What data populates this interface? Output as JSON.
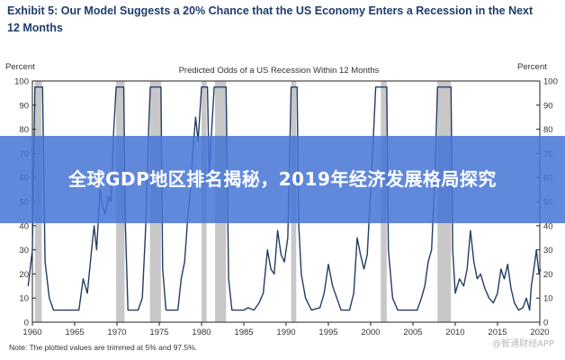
{
  "header": {
    "title": "Exhibit 5: Our Model Suggests a 20% Chance that the US Economy Enters a Recession in the Next 12 Months"
  },
  "overlay": {
    "text": "全球GDP地区排名揭秘，2019年经济发展格局探究",
    "background": "#4676d6"
  },
  "footnote": "Note: The plotted values are trimmed at 5% and 97.5%.",
  "watermark": "@智通财经APP",
  "colors": {
    "line": "#233d62",
    "recession_shade": "#c8c8c8",
    "title": "#1f3c6e"
  },
  "chart_data": {
    "type": "line",
    "title": "Predicted Odds of a US Recession  Within 12 Months",
    "ylabel_left": "Percent",
    "ylabel_right": "Percent",
    "xlim": [
      1960,
      2020
    ],
    "ylim": [
      0,
      100
    ],
    "x_ticks": [
      1960,
      1965,
      1970,
      1975,
      1980,
      1985,
      1990,
      1995,
      2000,
      2005,
      2010,
      2015,
      2020
    ],
    "y_ticks": [
      0,
      10,
      20,
      30,
      40,
      50,
      60,
      70,
      80,
      90,
      100
    ],
    "grid": false,
    "recessions": [
      [
        1960.3,
        1961.1
      ],
      [
        1969.9,
        1970.9
      ],
      [
        1973.9,
        1975.2
      ],
      [
        1980.0,
        1980.6
      ],
      [
        1981.6,
        1982.9
      ],
      [
        1990.6,
        1991.2
      ],
      [
        2001.2,
        2001.9
      ],
      [
        2007.9,
        2009.5
      ]
    ],
    "series": [
      {
        "values": [
          [
            1959.5,
            15
          ],
          [
            1960.0,
            30
          ],
          [
            1960.3,
            97.5
          ],
          [
            1961.2,
            97.5
          ],
          [
            1961.5,
            25
          ],
          [
            1962.0,
            10
          ],
          [
            1962.5,
            5
          ],
          [
            1963.5,
            5
          ],
          [
            1964.5,
            5
          ],
          [
            1965.5,
            5
          ],
          [
            1966.0,
            18
          ],
          [
            1966.5,
            12
          ],
          [
            1967.0,
            30
          ],
          [
            1967.3,
            40
          ],
          [
            1967.6,
            30
          ],
          [
            1968.0,
            55
          ],
          [
            1968.3,
            48
          ],
          [
            1968.6,
            45
          ],
          [
            1969.0,
            52
          ],
          [
            1969.3,
            50
          ],
          [
            1969.6,
            78
          ],
          [
            1969.9,
            97.5
          ],
          [
            1970.8,
            97.5
          ],
          [
            1971.0,
            40
          ],
          [
            1971.3,
            5
          ],
          [
            1972.5,
            5
          ],
          [
            1973.0,
            10
          ],
          [
            1973.4,
            40
          ],
          [
            1973.8,
            85
          ],
          [
            1973.95,
            97.5
          ],
          [
            1975.2,
            97.5
          ],
          [
            1975.4,
            22
          ],
          [
            1975.8,
            5
          ],
          [
            1976.5,
            5
          ],
          [
            1977.2,
            5
          ],
          [
            1977.6,
            18
          ],
          [
            1978.0,
            25
          ],
          [
            1978.4,
            45
          ],
          [
            1978.7,
            55
          ],
          [
            1979.0,
            72
          ],
          [
            1979.3,
            85
          ],
          [
            1979.6,
            75
          ],
          [
            1980.0,
            97.5
          ],
          [
            1980.7,
            97.5
          ],
          [
            1980.9,
            60
          ],
          [
            1981.2,
            80
          ],
          [
            1981.5,
            97.5
          ],
          [
            1982.9,
            97.5
          ],
          [
            1983.2,
            18
          ],
          [
            1983.6,
            5
          ],
          [
            1985.0,
            5
          ],
          [
            1985.5,
            6
          ],
          [
            1986.2,
            5
          ],
          [
            1986.8,
            8
          ],
          [
            1987.3,
            12
          ],
          [
            1987.8,
            30
          ],
          [
            1988.2,
            22
          ],
          [
            1988.6,
            20
          ],
          [
            1989.0,
            38
          ],
          [
            1989.4,
            28
          ],
          [
            1989.8,
            25
          ],
          [
            1990.2,
            35
          ],
          [
            1990.6,
            97.5
          ],
          [
            1991.3,
            97.5
          ],
          [
            1991.5,
            40
          ],
          [
            1991.8,
            20
          ],
          [
            1992.3,
            10
          ],
          [
            1993.0,
            5
          ],
          [
            1994.0,
            6
          ],
          [
            1994.5,
            12
          ],
          [
            1995.0,
            24
          ],
          [
            1995.5,
            15
          ],
          [
            1996.0,
            10
          ],
          [
            1996.5,
            5
          ],
          [
            1997.5,
            5
          ],
          [
            1998.0,
            12
          ],
          [
            1998.4,
            35
          ],
          [
            1998.8,
            28
          ],
          [
            1999.2,
            22
          ],
          [
            1999.6,
            28
          ],
          [
            2000.0,
            55
          ],
          [
            2000.3,
            75
          ],
          [
            2000.6,
            97.5
          ],
          [
            2001.0,
            97.5
          ],
          [
            2001.9,
            97.5
          ],
          [
            2002.1,
            30
          ],
          [
            2002.6,
            10
          ],
          [
            2003.2,
            5
          ],
          [
            2004.5,
            5
          ],
          [
            2005.5,
            5
          ],
          [
            2006.0,
            10
          ],
          [
            2006.4,
            15
          ],
          [
            2006.8,
            25
          ],
          [
            2007.2,
            30
          ],
          [
            2007.6,
            60
          ],
          [
            2007.9,
            97.5
          ],
          [
            2009.5,
            97.5
          ],
          [
            2009.7,
            30
          ],
          [
            2010.0,
            12
          ],
          [
            2010.5,
            18
          ],
          [
            2011.0,
            15
          ],
          [
            2011.4,
            22
          ],
          [
            2011.8,
            38
          ],
          [
            2012.2,
            25
          ],
          [
            2012.6,
            18
          ],
          [
            2013.0,
            20
          ],
          [
            2013.5,
            14
          ],
          [
            2014.0,
            10
          ],
          [
            2014.5,
            8
          ],
          [
            2015.0,
            12
          ],
          [
            2015.4,
            22
          ],
          [
            2015.8,
            18
          ],
          [
            2016.2,
            24
          ],
          [
            2016.6,
            14
          ],
          [
            2017.0,
            8
          ],
          [
            2017.5,
            5
          ],
          [
            2018.0,
            6
          ],
          [
            2018.4,
            10
          ],
          [
            2018.8,
            5
          ],
          [
            2019.0,
            15
          ],
          [
            2019.3,
            22
          ],
          [
            2019.6,
            30
          ],
          [
            2019.9,
            20
          ],
          [
            2020.1,
            22
          ]
        ]
      }
    ]
  }
}
